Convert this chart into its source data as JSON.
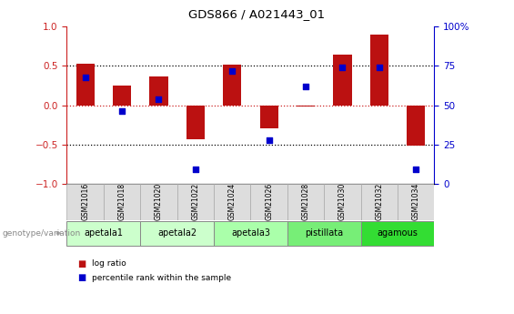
{
  "title": "GDS866 / A021443_01",
  "samples": [
    "GSM21016",
    "GSM21018",
    "GSM21020",
    "GSM21022",
    "GSM21024",
    "GSM21026",
    "GSM21028",
    "GSM21030",
    "GSM21032",
    "GSM21034"
  ],
  "log_ratio": [
    0.53,
    0.25,
    0.37,
    -0.43,
    0.52,
    -0.3,
    -0.02,
    0.65,
    0.9,
    -0.52
  ],
  "percentile_rank_raw": [
    68,
    46,
    54,
    9,
    72,
    28,
    62,
    74,
    74,
    9
  ],
  "groups": [
    {
      "label": "apetala1",
      "indices": [
        0,
        1
      ],
      "color": "#ccffcc"
    },
    {
      "label": "apetala2",
      "indices": [
        2,
        3
      ],
      "color": "#ccffcc"
    },
    {
      "label": "apetala3",
      "indices": [
        4,
        5
      ],
      "color": "#aaffaa"
    },
    {
      "label": "pistillata",
      "indices": [
        6,
        7
      ],
      "color": "#77ee77"
    },
    {
      "label": "agamous",
      "indices": [
        8,
        9
      ],
      "color": "#33dd33"
    }
  ],
  "bar_color": "#bb1111",
  "dot_color": "#0000cc",
  "ylim_left": [
    -1.0,
    1.0
  ],
  "ylim_right": [
    0,
    100
  ],
  "yticks_left": [
    -1,
    -0.5,
    0,
    0.5,
    1
  ],
  "yticks_right": [
    0,
    25,
    50,
    75,
    100
  ],
  "hlines_black": [
    -0.5,
    0.5
  ],
  "hline_red": 0.0,
  "left_axis_color": "#cc2222",
  "right_axis_color": "#0000cc",
  "legend_bar_label": "log ratio",
  "legend_dot_label": "percentile rank within the sample",
  "genotype_label": "genotype/variation",
  "sample_box_color": "#dddddd",
  "background_color": "#ffffff"
}
